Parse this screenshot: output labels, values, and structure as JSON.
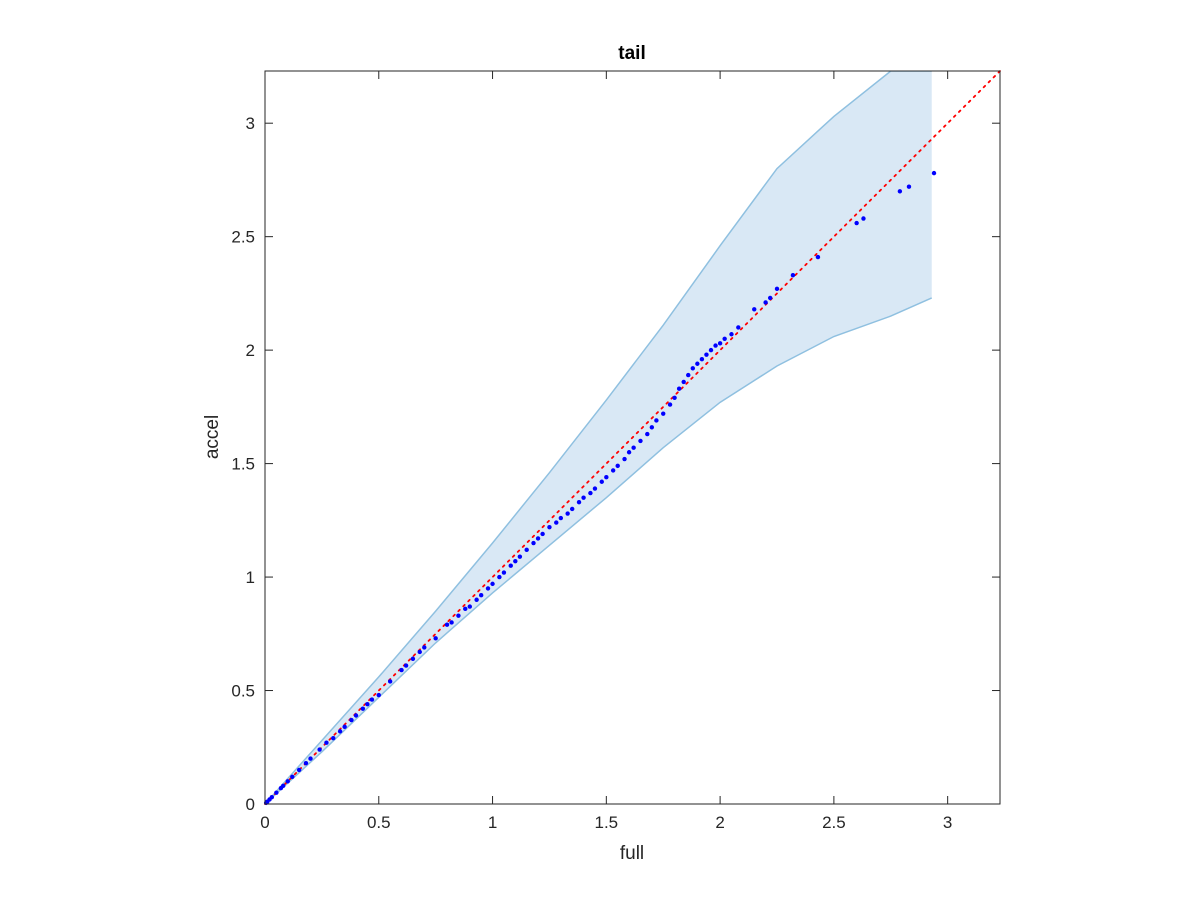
{
  "chart_data": {
    "type": "scatter",
    "title": "tail",
    "xlabel": "full",
    "ylabel": "accel",
    "xlim": [
      0,
      3.23
    ],
    "ylim": [
      0,
      3.23
    ],
    "xticks": [
      0,
      0.5,
      1,
      1.5,
      2,
      2.5,
      3
    ],
    "yticks": [
      0,
      0.5,
      1,
      1.5,
      2,
      2.5,
      3
    ],
    "xtick_labels": [
      "0",
      "0.5",
      "1",
      "1.5",
      "2",
      "2.5",
      "3"
    ],
    "ytick_labels": [
      "0",
      "0.5",
      "1",
      "1.5",
      "2",
      "2.5",
      "3"
    ],
    "grid": false,
    "legend": "none",
    "colors": {
      "points": "#0000ff",
      "reference_line": "#ff0000",
      "band_fill": "#d9e8f5",
      "band_edge": "#8fc0e0",
      "axes": "#262626"
    },
    "reference_line": {
      "style": "dotted",
      "x": [
        0,
        3.23
      ],
      "y": [
        0,
        3.23
      ]
    },
    "confidence_band": {
      "x": [
        0,
        0.25,
        0.5,
        0.75,
        1.0,
        1.25,
        1.5,
        1.75,
        2.0,
        2.25,
        2.5,
        2.75,
        2.93
      ],
      "upper": [
        0,
        0.28,
        0.56,
        0.85,
        1.15,
        1.46,
        1.78,
        2.11,
        2.46,
        2.8,
        3.03,
        3.23,
        3.23
      ],
      "lower": [
        0,
        0.23,
        0.47,
        0.71,
        0.93,
        1.14,
        1.35,
        1.57,
        1.77,
        1.93,
        2.06,
        2.15,
        2.23
      ]
    },
    "points": {
      "x": [
        0.005,
        0.01,
        0.02,
        0.03,
        0.05,
        0.07,
        0.08,
        0.1,
        0.12,
        0.15,
        0.18,
        0.2,
        0.24,
        0.27,
        0.3,
        0.33,
        0.35,
        0.38,
        0.4,
        0.43,
        0.45,
        0.47,
        0.5,
        0.55,
        0.6,
        0.62,
        0.65,
        0.68,
        0.7,
        0.75,
        0.8,
        0.82,
        0.85,
        0.88,
        0.9,
        0.93,
        0.95,
        0.98,
        1.0,
        1.03,
        1.05,
        1.08,
        1.1,
        1.12,
        1.15,
        1.18,
        1.2,
        1.22,
        1.25,
        1.28,
        1.3,
        1.33,
        1.35,
        1.38,
        1.4,
        1.43,
        1.45,
        1.48,
        1.5,
        1.53,
        1.55,
        1.58,
        1.6,
        1.62,
        1.65,
        1.68,
        1.7,
        1.72,
        1.75,
        1.78,
        1.8,
        1.82,
        1.84,
        1.86,
        1.88,
        1.9,
        1.92,
        1.94,
        1.96,
        1.98,
        2.0,
        2.02,
        2.05,
        2.08,
        2.15,
        2.2,
        2.22,
        2.25,
        2.32,
        2.43,
        2.6,
        2.63,
        2.79,
        2.83,
        2.94
      ],
      "y": [
        0.005,
        0.01,
        0.02,
        0.03,
        0.05,
        0.07,
        0.08,
        0.1,
        0.12,
        0.15,
        0.18,
        0.2,
        0.24,
        0.27,
        0.29,
        0.32,
        0.34,
        0.37,
        0.39,
        0.42,
        0.44,
        0.46,
        0.48,
        0.54,
        0.59,
        0.61,
        0.64,
        0.67,
        0.69,
        0.73,
        0.79,
        0.8,
        0.83,
        0.86,
        0.87,
        0.9,
        0.92,
        0.95,
        0.97,
        1.0,
        1.02,
        1.05,
        1.07,
        1.09,
        1.12,
        1.15,
        1.17,
        1.19,
        1.22,
        1.24,
        1.26,
        1.28,
        1.3,
        1.33,
        1.35,
        1.37,
        1.39,
        1.42,
        1.44,
        1.47,
        1.49,
        1.52,
        1.55,
        1.57,
        1.6,
        1.63,
        1.66,
        1.69,
        1.72,
        1.76,
        1.79,
        1.83,
        1.86,
        1.89,
        1.92,
        1.94,
        1.96,
        1.98,
        2.0,
        2.02,
        2.03,
        2.05,
        2.07,
        2.1,
        2.18,
        2.21,
        2.23,
        2.27,
        2.33,
        2.41,
        2.56,
        2.58,
        2.7,
        2.72,
        2.78
      ]
    }
  }
}
